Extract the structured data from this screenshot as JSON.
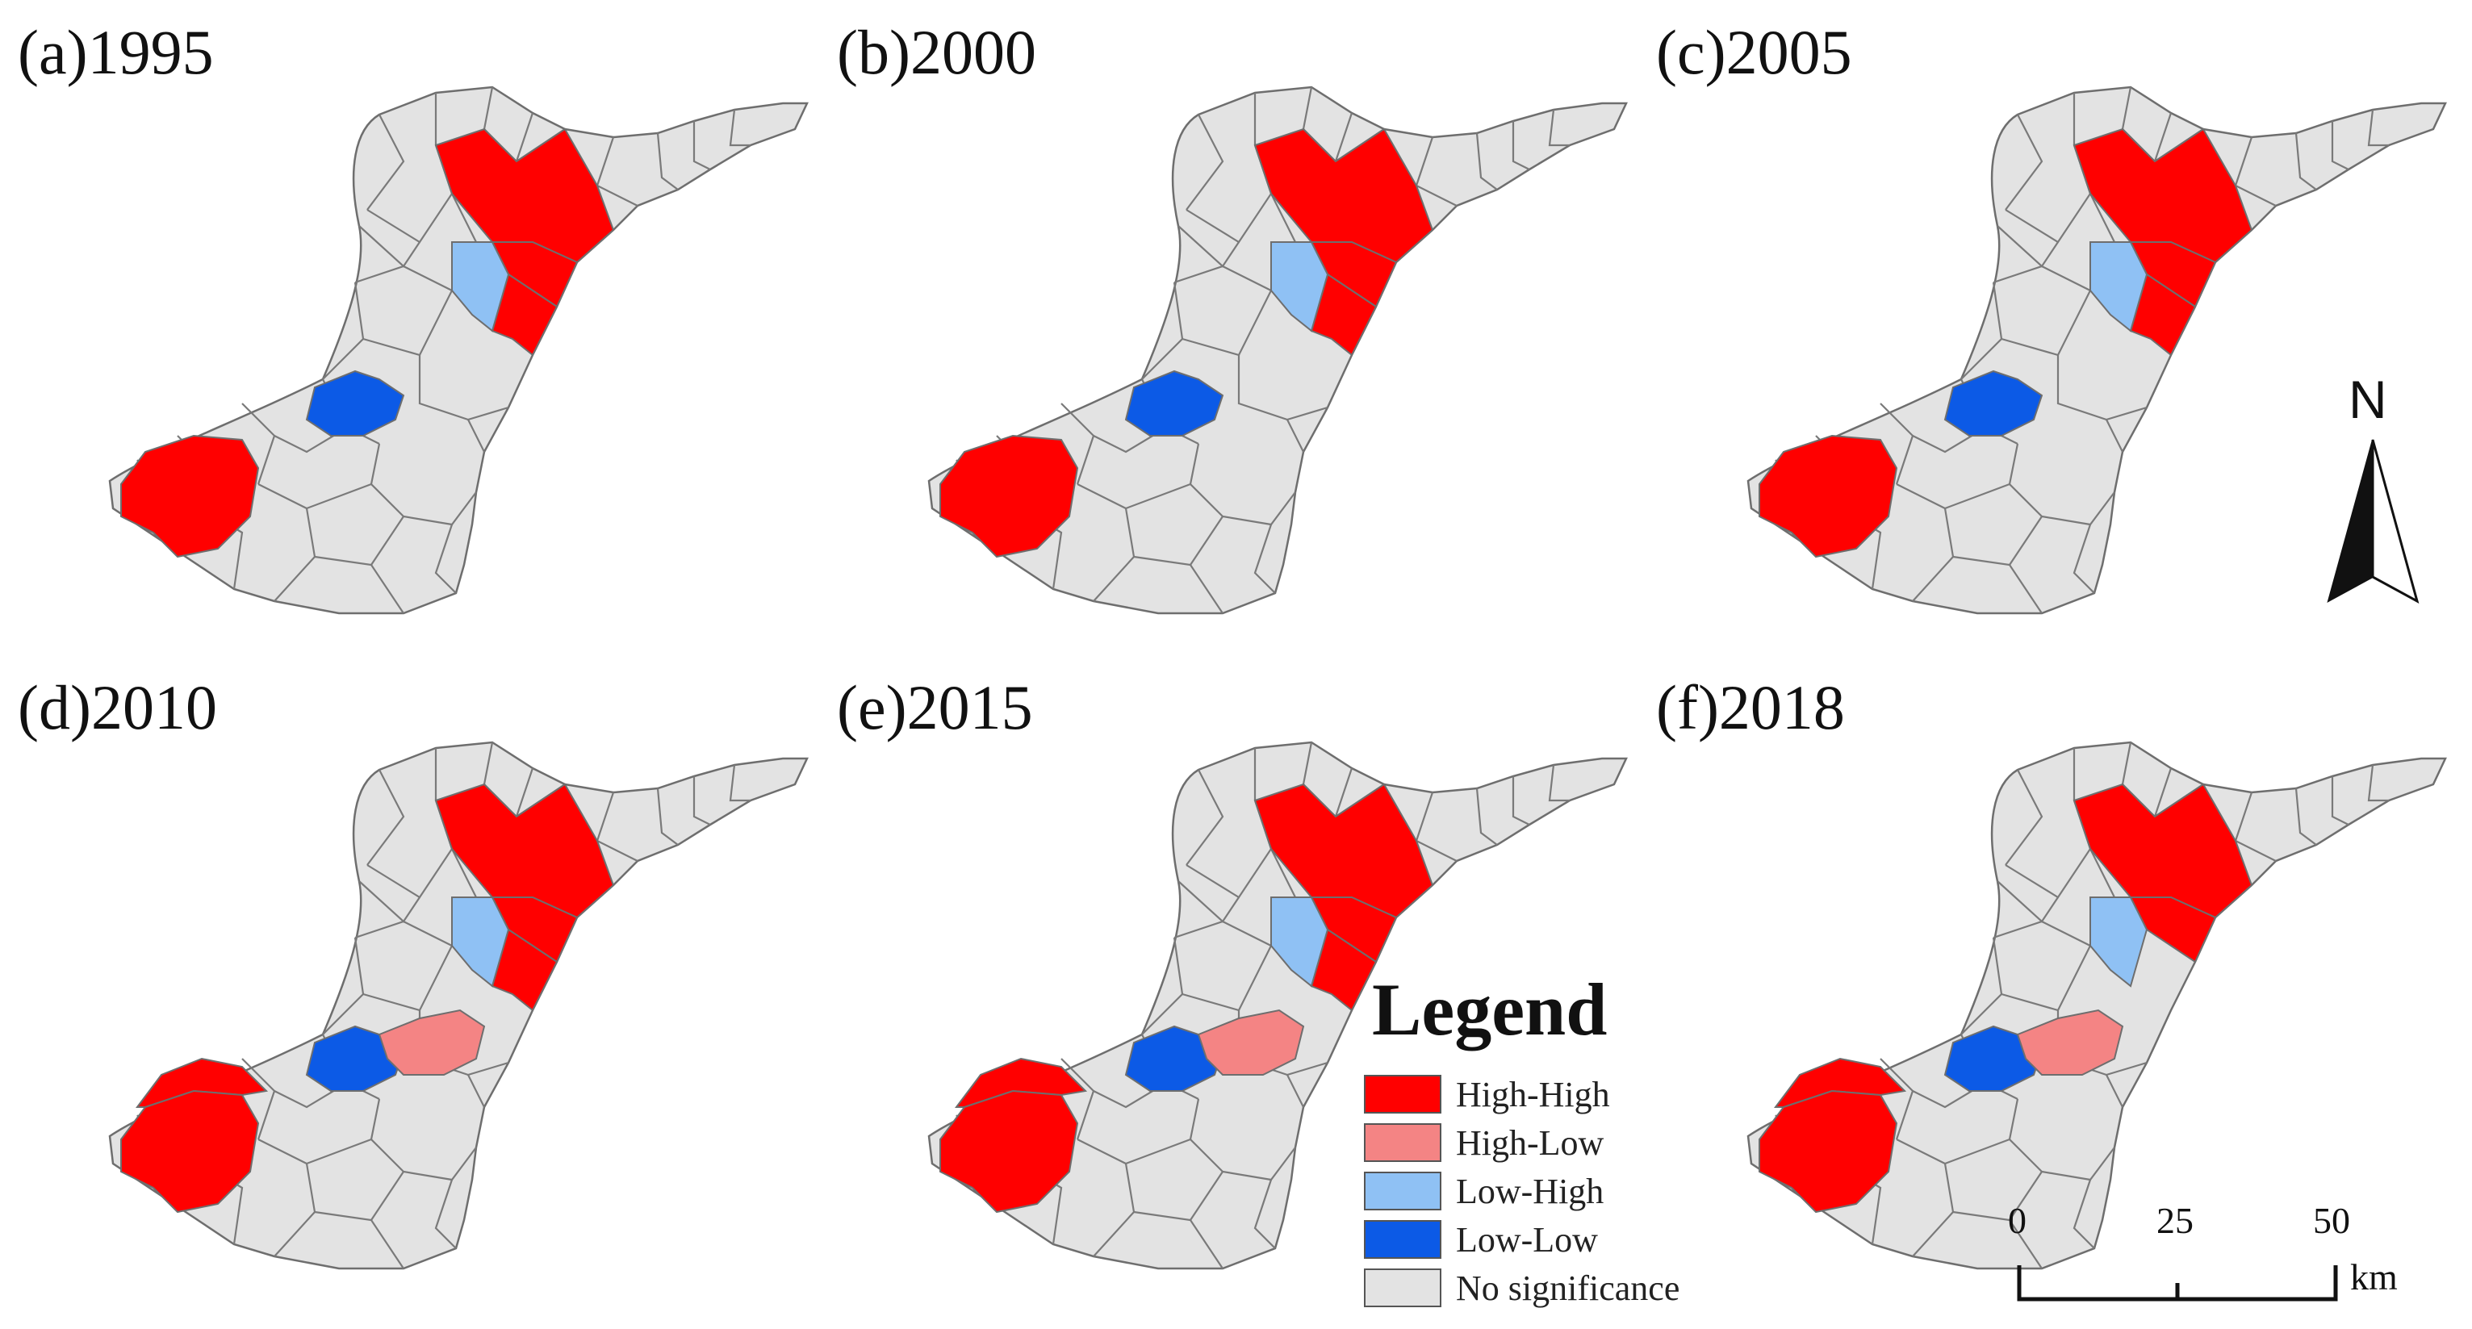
{
  "colors": {
    "high_high": "#ff0000",
    "high_low": "#f48484",
    "low_high": "#8fc1f4",
    "low_low": "#0c5ae6",
    "none": "#e3e3e3",
    "outline": "#6e6e6e"
  },
  "panels": [
    {
      "label": "(a)1995",
      "clusters": {
        "zone_ne": "high_high",
        "zone_e": "high_high",
        "zone_corr": "high_high",
        "zone_mid": "low_high",
        "zone_c": "low_low",
        "zone_sw": "high_high",
        "zone_sw2": "none",
        "zone_se": "none"
      }
    },
    {
      "label": "(b)2000",
      "clusters": {
        "zone_ne": "high_high",
        "zone_e": "high_high",
        "zone_corr": "high_high",
        "zone_mid": "low_high",
        "zone_c": "low_low",
        "zone_sw": "high_high",
        "zone_sw2": "none",
        "zone_se": "none"
      }
    },
    {
      "label": "(c)2005",
      "clusters": {
        "zone_ne": "high_high",
        "zone_e": "high_high",
        "zone_corr": "high_high",
        "zone_mid": "low_high",
        "zone_c": "low_low",
        "zone_sw": "high_high",
        "zone_sw2": "none",
        "zone_se": "none"
      }
    },
    {
      "label": "(d)2010",
      "clusters": {
        "zone_ne": "high_high",
        "zone_e": "high_high",
        "zone_corr": "high_high",
        "zone_mid": "low_high",
        "zone_c": "low_low",
        "zone_sw": "high_high",
        "zone_sw2": "high_high",
        "zone_se": "high_low"
      }
    },
    {
      "label": "(e)2015",
      "clusters": {
        "zone_ne": "high_high",
        "zone_e": "high_high",
        "zone_corr": "high_high",
        "zone_mid": "low_high",
        "zone_c": "low_low",
        "zone_sw": "high_high",
        "zone_sw2": "high_high",
        "zone_se": "high_low"
      }
    },
    {
      "label": "(f)2018",
      "clusters": {
        "zone_ne": "high_high",
        "zone_e": "high_high",
        "zone_corr": "none",
        "zone_mid": "low_high",
        "zone_c": "low_low",
        "zone_sw": "high_high",
        "zone_sw2": "high_high",
        "zone_se": "high_low"
      }
    }
  ],
  "legend": {
    "title": "Legend",
    "items": [
      {
        "key": "high_high",
        "label": "High-High"
      },
      {
        "key": "high_low",
        "label": "High-Low"
      },
      {
        "key": "low_high",
        "label": "Low-High"
      },
      {
        "key": "low_low",
        "label": "Low-Low"
      },
      {
        "key": "none",
        "label": "No significance"
      }
    ]
  },
  "north_arrow": {
    "label": "N"
  },
  "scale_bar": {
    "ticks": [
      "0",
      "25",
      "50"
    ],
    "unit": "km"
  }
}
